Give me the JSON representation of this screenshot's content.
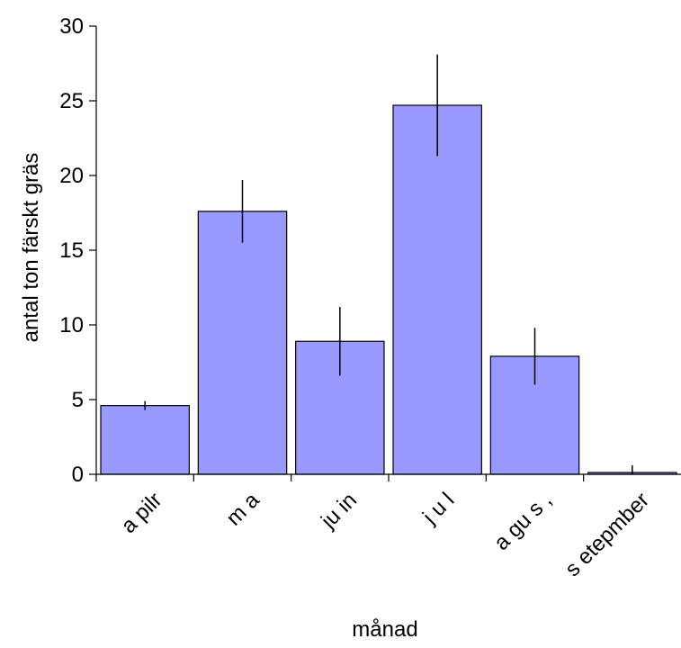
{
  "chart_data": {
    "type": "bar",
    "title": "",
    "xlabel": "månad",
    "ylabel": "antal ton färskt gräs",
    "categories": [
      "a pilr",
      "m a",
      "ju in",
      "j u l",
      "a gu s ,",
      "s etepmber"
    ],
    "values": [
      4.6,
      17.6,
      8.9,
      24.7,
      7.9,
      0.1
    ],
    "errors": [
      0.3,
      2.1,
      2.3,
      3.4,
      1.9,
      0.5
    ],
    "ylim": [
      0,
      30
    ],
    "yticks": [
      "0",
      "5",
      "10",
      "15",
      "20",
      "25",
      "30"
    ],
    "grid": false,
    "legend": "none",
    "bar_color": "#9999ff",
    "bar_edge_color": "#000000"
  }
}
